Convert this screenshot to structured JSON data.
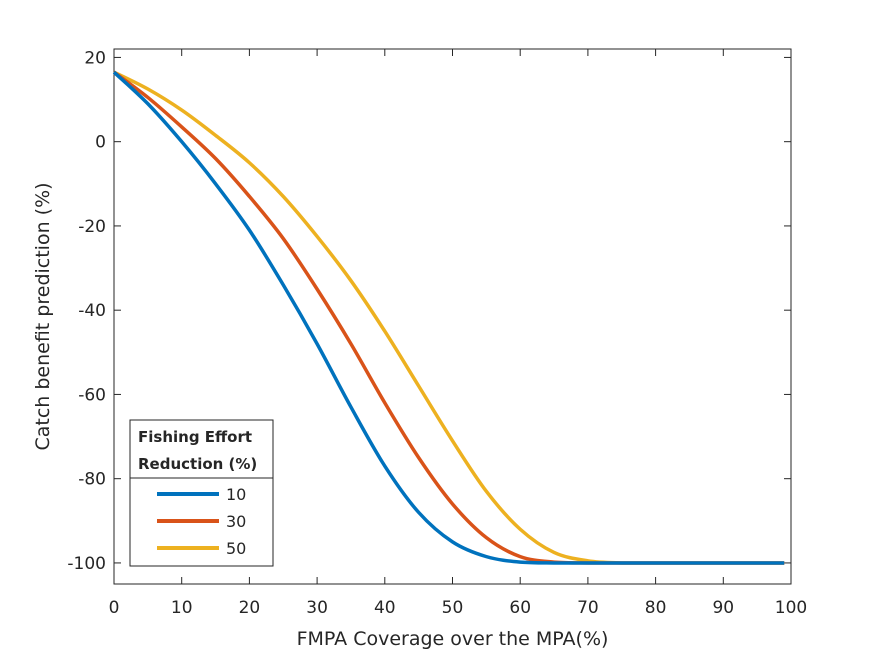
{
  "chart_data": {
    "type": "line",
    "title": "",
    "xlabel": "FMPA Coverage over the MPA(%)",
    "ylabel": "Catch benefit prediction (%)",
    "xlim": [
      0,
      100
    ],
    "ylim": [
      -105,
      22
    ],
    "xticks": [
      0,
      10,
      20,
      30,
      40,
      50,
      60,
      70,
      80,
      90,
      100
    ],
    "yticks": [
      20,
      0,
      -20,
      -40,
      -60,
      -80,
      -100
    ],
    "grid": false,
    "legend": {
      "placement": "bottom-left",
      "title_line1": "Fishing Effort",
      "title_line2": "Reduction (%)"
    },
    "x": [
      0,
      5,
      10,
      15,
      20,
      25,
      30,
      35,
      40,
      45,
      50,
      55,
      60,
      65,
      70,
      75,
      80,
      85,
      90,
      95,
      99
    ],
    "series": [
      {
        "name": "10",
        "color": "#0072BD",
        "values": [
          16.5,
          9,
          0,
          -10,
          -21,
          -34,
          -48,
          -63,
          -77,
          -88,
          -95,
          -98.5,
          -99.8,
          -100,
          -100,
          -100,
          -100,
          -100,
          -100,
          -100,
          -100
        ]
      },
      {
        "name": "30",
        "color": "#D95319",
        "values": [
          16.5,
          10.5,
          3.5,
          -4,
          -13,
          -23,
          -35,
          -48,
          -62,
          -75,
          -86,
          -94,
          -98.5,
          -99.8,
          -100,
          -100,
          -100,
          -100,
          -100,
          -100,
          -100
        ]
      },
      {
        "name": "50",
        "color": "#EDB120",
        "values": [
          16.5,
          12.5,
          7.5,
          1.5,
          -5,
          -13,
          -22.5,
          -33,
          -45,
          -58,
          -71,
          -83,
          -92,
          -97.5,
          -99.5,
          -100,
          -100,
          -100,
          -100,
          -100,
          -100
        ]
      }
    ]
  }
}
